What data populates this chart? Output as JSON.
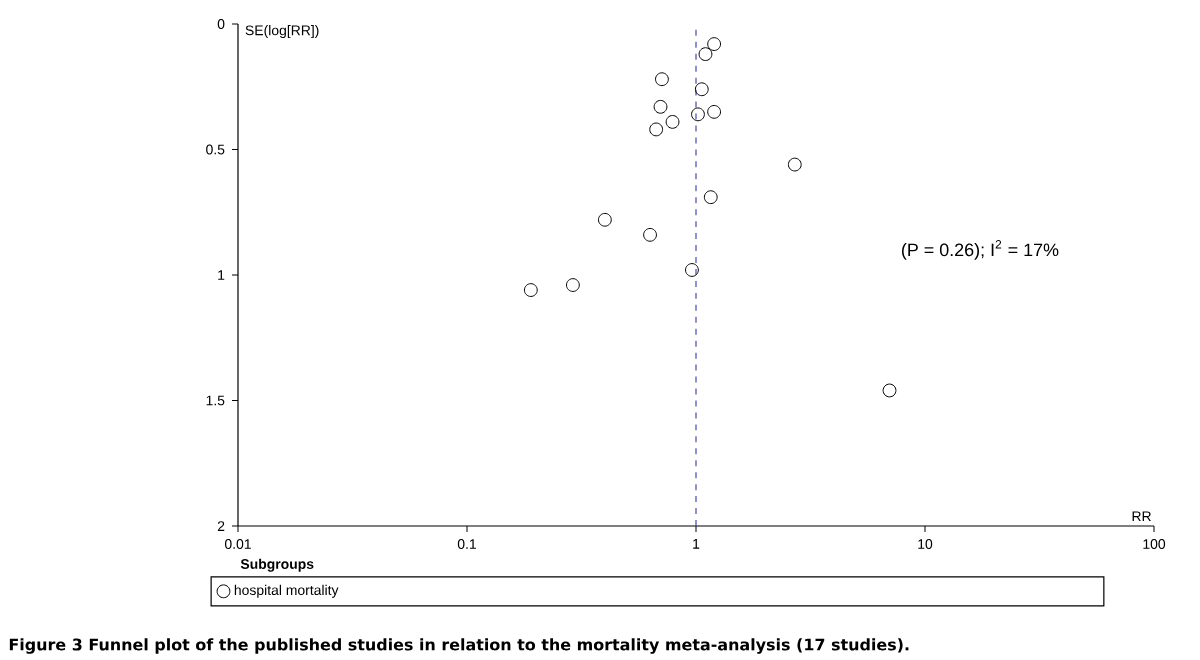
{
  "chart_data": {
    "type": "scatter",
    "xlabel": "RR",
    "ylabel": "SE(log[RR])",
    "legend_title": "Subgroups",
    "annotations": [
      "(P = 0.26); I$^{2}$ = 17%",
      "Figure 3 Funnel plot of the published studies in relation to the mortality meta-analysis (17 studies)."
    ],
    "log": "x",
    "xlim": [
      0.01,
      100
    ],
    "xticks": [
      0.01,
      0.1,
      1,
      10,
      100
    ],
    "ylim": [
      2,
      0
    ],
    "yticks": [
      0,
      0.5,
      1,
      1.5,
      2
    ],
    "marker": "circle",
    "legend": "bottom",
    "grid": false,
    "ref_lines": [
      {
        "axis": "x",
        "value": 1,
        "color": "#4a4aa8",
        "line_style": "dashed"
      }
    ],
    "series": [
      {
        "name": "hospital mortality",
        "color": "#000000",
        "x": [
          1.2,
          1.1,
          0.71,
          1.06,
          0.7,
          1.02,
          1.2,
          0.79,
          0.67,
          2.7,
          1.16,
          0.4,
          0.63,
          0.96,
          0.29,
          0.19,
          7.0
        ],
        "values": [
          0.08,
          0.12,
          0.22,
          0.26,
          0.33,
          0.36,
          0.35,
          0.39,
          0.42,
          0.56,
          0.69,
          0.78,
          0.84,
          0.98,
          1.04,
          1.06,
          1.46
        ]
      }
    ]
  }
}
